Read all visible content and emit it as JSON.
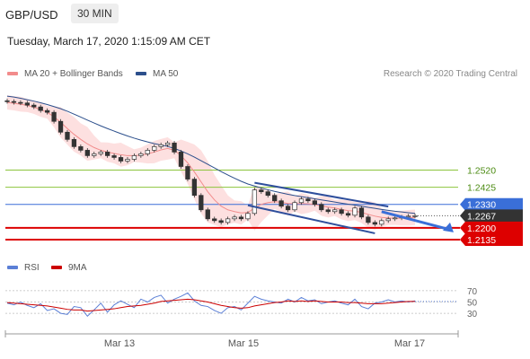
{
  "header": {
    "pair": "GBP/USD",
    "timeframe": "30 MIN",
    "datetime": "Tuesday, March 17, 2020 1:15:09 AM CET"
  },
  "legend": {
    "ma20": "MA 20 + Bollinger Bands",
    "ma50": "MA 50",
    "credit": "Research © 2020 Trading Central",
    "rsi": "RSI",
    "ma9": "9MA"
  },
  "colors": {
    "ma20": "#f28c8c",
    "bollinger_fill": "#fde0e0",
    "ma50": "#2c4f8c",
    "rsi": "#5b7fd6",
    "ma9": "#cc0000",
    "support": "#dd0000",
    "pivot": "#3a6fd8",
    "resistance_levels": "#8cc43c",
    "last_price": "#333333",
    "trendline": "#2f4f9c"
  },
  "chart_data": [
    {
      "type": "line",
      "title": "GBP/USD 30 MIN",
      "xlabels": [
        "Mar 13",
        "Mar 15",
        "Mar 17"
      ],
      "ylim": [
        1.2095,
        1.299
      ],
      "levels": [
        {
          "label": "1.2520",
          "value": 1.252,
          "kind": "resistance"
        },
        {
          "label": "1.2425",
          "value": 1.2425,
          "kind": "resistance"
        },
        {
          "label": "1.2330",
          "value": 1.233,
          "kind": "pivot"
        },
        {
          "label": "1.2267",
          "value": 1.2267,
          "kind": "last"
        },
        {
          "label": "1.2200",
          "value": 1.22,
          "kind": "support"
        },
        {
          "label": "1.2135",
          "value": 1.2135,
          "kind": "support"
        }
      ],
      "series": [
        {
          "name": "Price",
          "values": [
            1.29,
            1.2895,
            1.2892,
            1.288,
            1.287,
            1.285,
            1.284,
            1.279,
            1.273,
            1.269,
            1.265,
            1.263,
            1.26,
            1.261,
            1.262,
            1.26,
            1.259,
            1.257,
            1.258,
            1.26,
            1.261,
            1.263,
            1.265,
            1.266,
            1.267,
            1.262,
            1.254,
            1.247,
            1.238,
            1.23,
            1.225,
            1.224,
            1.223,
            1.225,
            1.226,
            1.225,
            1.228,
            1.241,
            1.24,
            1.238,
            1.235,
            1.232,
            1.23,
            1.234,
            1.236,
            1.235,
            1.233,
            1.23,
            1.229,
            1.23,
            1.228,
            1.227,
            1.231,
            1.226,
            1.223,
            1.222,
            1.224,
            1.225,
            1.2255,
            1.226,
            1.2265,
            1.2267
          ]
        },
        {
          "name": "MA 20",
          "values": [
            1.2895,
            1.289,
            1.2885,
            1.2878,
            1.2868,
            1.2855,
            1.284,
            1.2815,
            1.2785,
            1.275,
            1.2718,
            1.269,
            1.2665,
            1.2645,
            1.263,
            1.262,
            1.2612,
            1.2605,
            1.26,
            1.26,
            1.2603,
            1.261,
            1.262,
            1.2632,
            1.264,
            1.263,
            1.26,
            1.256,
            1.251,
            1.2455,
            1.24,
            1.2355,
            1.232,
            1.23,
            1.229,
            1.2283,
            1.2285,
            1.231,
            1.233,
            1.234,
            1.2345,
            1.2342,
            1.2335,
            1.2333,
            1.2334,
            1.2333,
            1.233,
            1.2322,
            1.2315,
            1.231,
            1.2302,
            1.2295,
            1.2293,
            1.2285,
            1.2275,
            1.2265,
            1.2258,
            1.2255,
            1.2253,
            1.2254,
            1.2256,
            1.2258
          ]
        },
        {
          "name": "MA 50",
          "values": [
            1.293,
            1.2925,
            1.2918,
            1.291,
            1.2902,
            1.2893,
            1.2883,
            1.2872,
            1.286,
            1.2846,
            1.283,
            1.2814,
            1.2797,
            1.2781,
            1.2765,
            1.275,
            1.2736,
            1.2722,
            1.2709,
            1.2697,
            1.2686,
            1.2676,
            1.2667,
            1.2659,
            1.2651,
            1.264,
            1.2626,
            1.261,
            1.2592,
            1.2572,
            1.2552,
            1.2532,
            1.2512,
            1.2493,
            1.2475,
            1.2458,
            1.2443,
            1.2432,
            1.2421,
            1.2411,
            1.2402,
            1.2394,
            1.2386,
            1.2379,
            1.2373,
            1.2367,
            1.2361,
            1.2355,
            1.2349,
            1.2343,
            1.2337,
            1.2331,
            1.2326,
            1.232,
            1.2314,
            1.2308,
            1.2302,
            1.2297,
            1.2292,
            1.2288,
            1.2284,
            1.228
          ]
        }
      ],
      "trendlines": [
        {
          "x": [
            37,
            57
          ],
          "y": [
            1.245,
            1.2318
          ]
        },
        {
          "x": [
            36,
            55
          ],
          "y": [
            1.2325,
            1.217
          ]
        }
      ],
      "forecast_arrow": {
        "x": [
          56,
          61
        ],
        "y": [
          1.229,
          1.2175
        ]
      }
    },
    {
      "type": "line",
      "title": "RSI",
      "ylim": [
        0,
        100
      ],
      "yticks": [
        "70",
        "50",
        "30"
      ],
      "series": [
        {
          "name": "RSI",
          "values": [
            48,
            45,
            50,
            44,
            40,
            47,
            35,
            38,
            30,
            28,
            42,
            40,
            25,
            36,
            48,
            32,
            45,
            52,
            46,
            40,
            55,
            50,
            58,
            62,
            48,
            55,
            60,
            66,
            52,
            44,
            42,
            35,
            30,
            40,
            42,
            36,
            48,
            60,
            55,
            52,
            50,
            48,
            55,
            50,
            58,
            52,
            54,
            47,
            50,
            52,
            48,
            45,
            55,
            42,
            38,
            48,
            50,
            54,
            50,
            52,
            50,
            52
          ]
        },
        {
          "name": "9MA",
          "values": [
            49,
            48,
            47,
            46,
            45,
            44,
            43,
            41,
            39,
            37,
            36,
            36,
            34,
            35,
            36,
            37,
            38,
            40,
            42,
            43,
            44,
            46,
            48,
            51,
            52,
            53,
            54,
            55,
            54,
            52,
            50,
            47,
            44,
            42,
            40,
            39,
            40,
            43,
            45,
            47,
            49,
            50,
            52,
            51,
            52,
            51,
            52,
            51,
            50,
            50,
            50,
            49,
            49,
            48,
            47,
            47,
            47,
            48,
            49,
            50,
            51,
            51
          ]
        }
      ]
    }
  ]
}
